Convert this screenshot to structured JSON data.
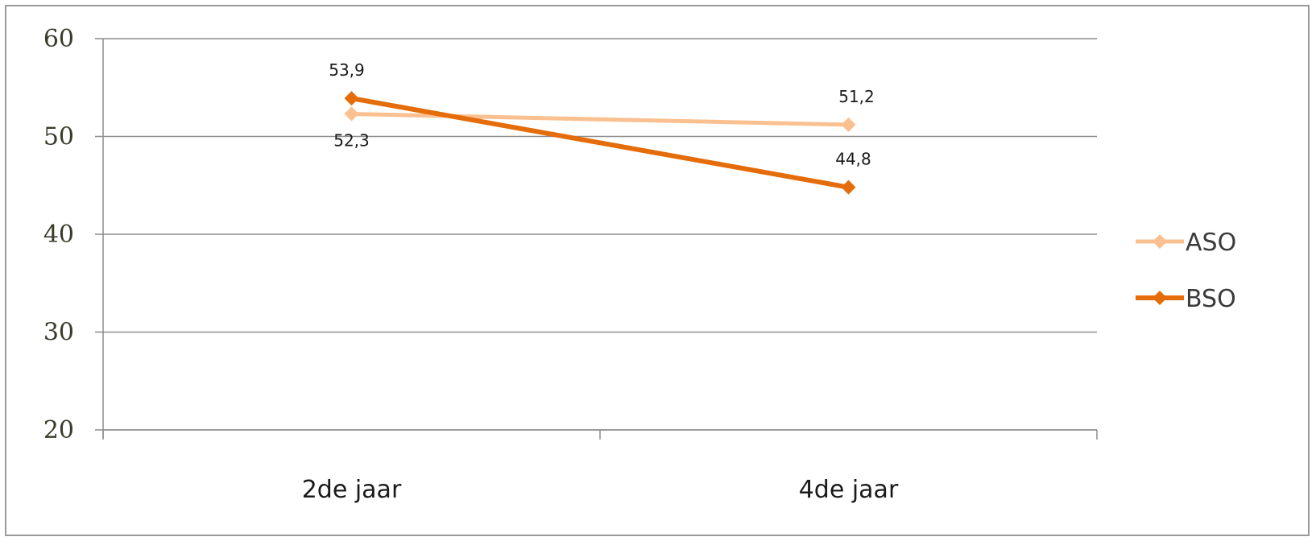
{
  "chart_data": {
    "type": "line",
    "categories": [
      "2de jaar",
      "4de jaar"
    ],
    "series": [
      {
        "name": "ASO",
        "values": [
          52.3,
          51.2
        ],
        "labels": [
          "52,3",
          "51,2"
        ],
        "color": "#fac090"
      },
      {
        "name": "BSO",
        "values": [
          53.9,
          44.8
        ],
        "labels": [
          "53,9",
          "44,8"
        ],
        "color": "#e46c0a"
      }
    ],
    "yticks": [
      "20",
      "30",
      "40",
      "50",
      "60"
    ],
    "ylim": [
      20,
      60
    ],
    "grid": true,
    "legend": "right",
    "marker": "diamond"
  }
}
